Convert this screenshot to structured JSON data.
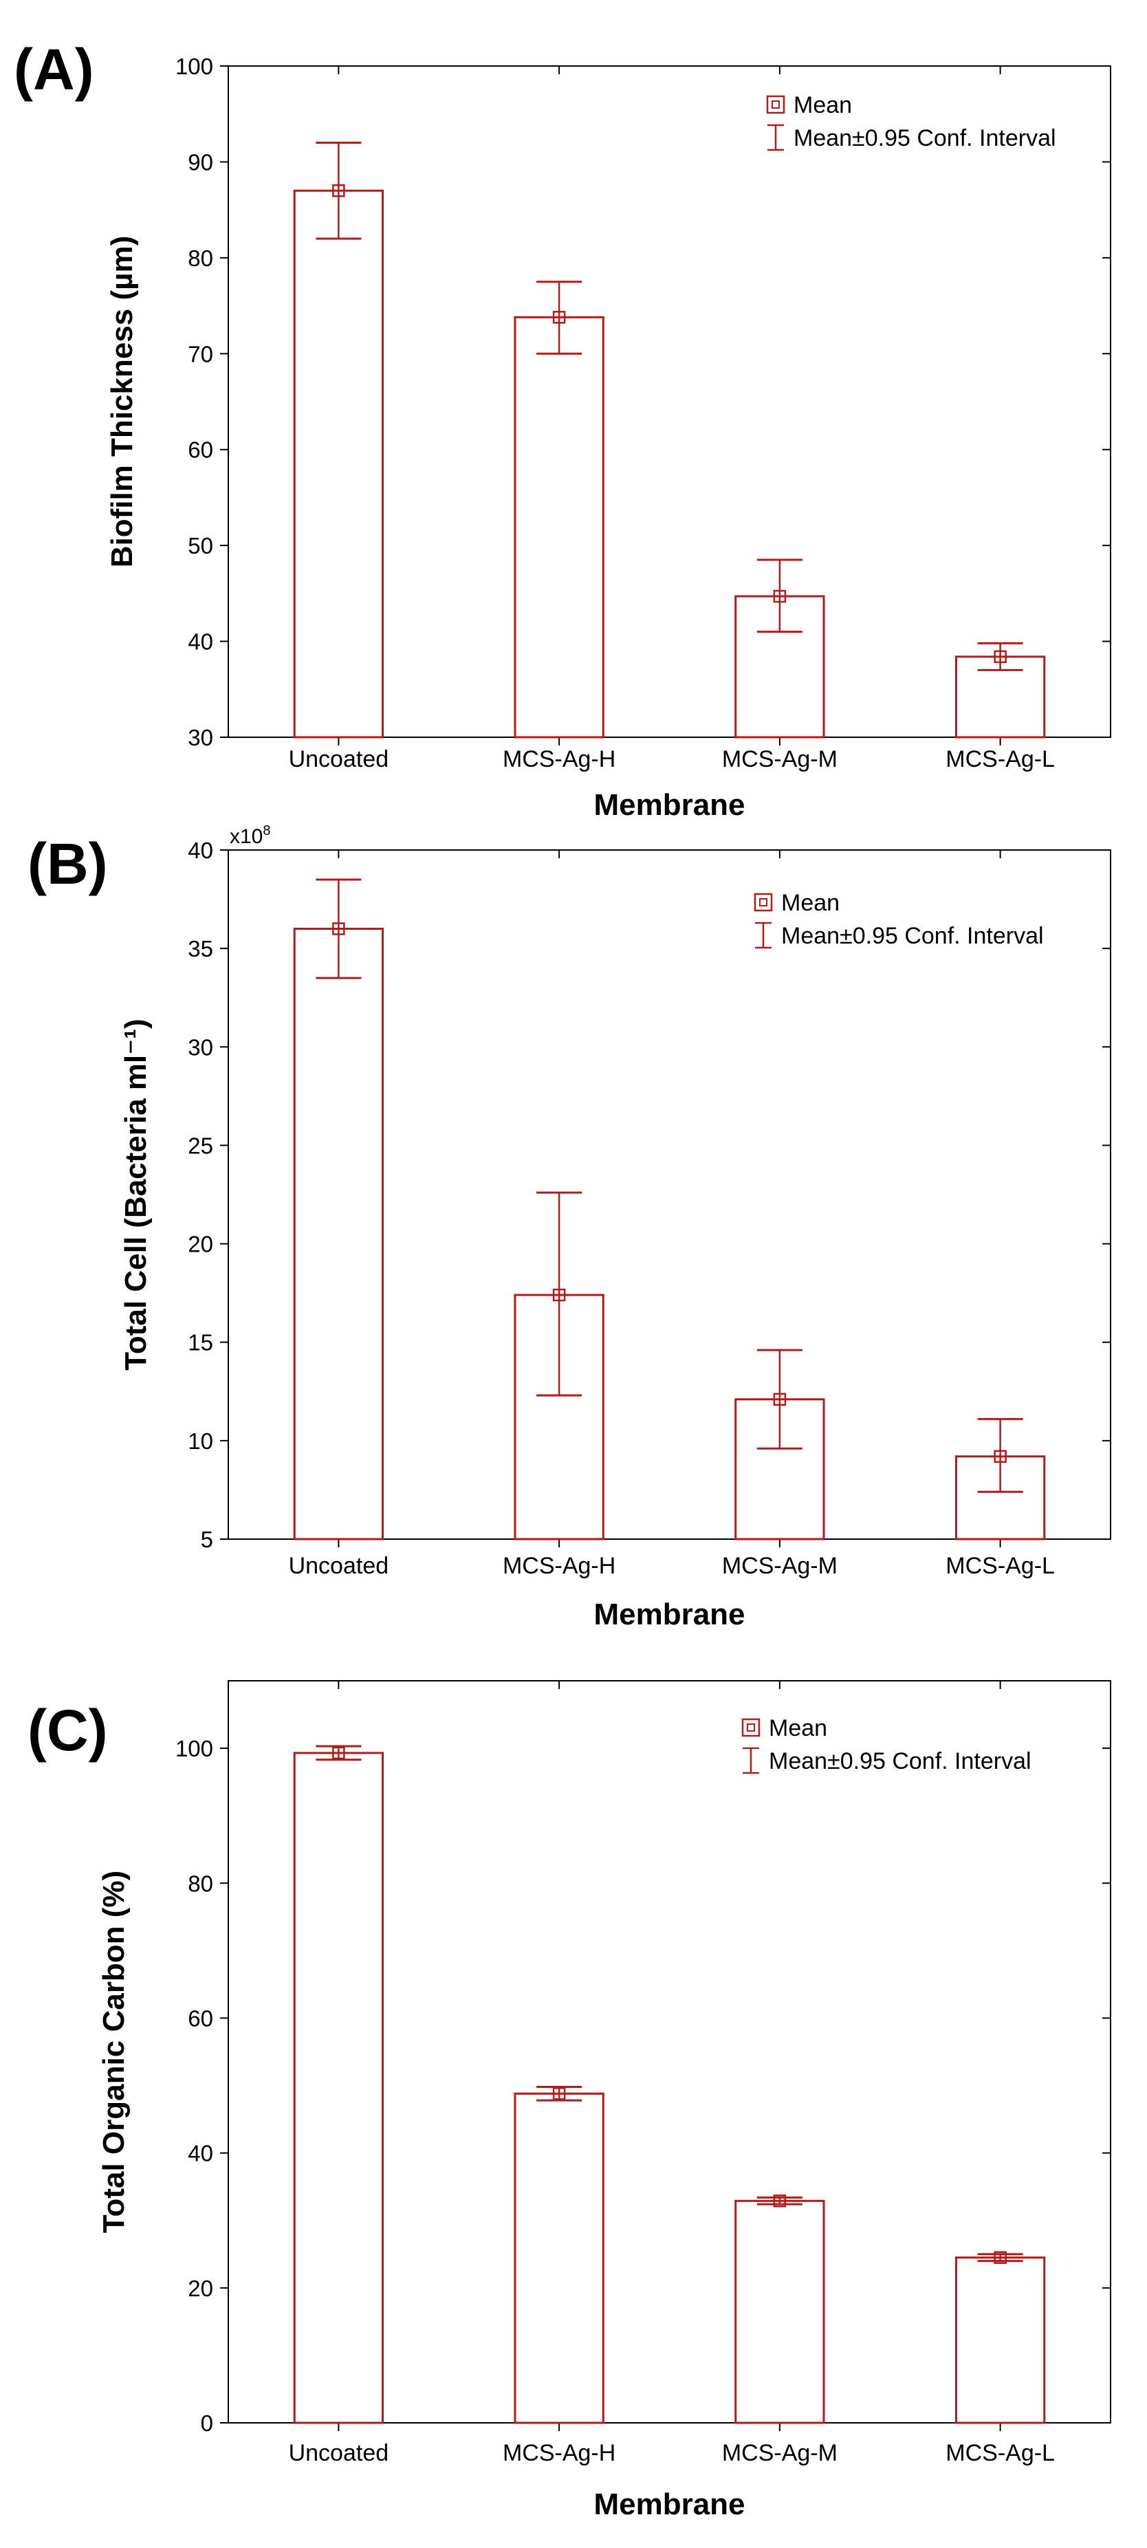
{
  "colors": {
    "bar": "#b01c1c",
    "axis": "#000000",
    "background": "#ffffff"
  },
  "chart_data": [
    {
      "panel_label": "(A)",
      "type": "bar",
      "categories": [
        "Uncoated",
        "MCS-Ag-H",
        "MCS-Ag-M",
        "MCS-Ag-L"
      ],
      "values": [
        87.0,
        73.8,
        44.7,
        38.4
      ],
      "ci_low": [
        82.0,
        70.0,
        41.0,
        37.0
      ],
      "ci_high": [
        92.0,
        77.5,
        48.5,
        39.8
      ],
      "xlabel": "Membrane",
      "ylabel": "Biofilm Thickness (µm)",
      "ylim": [
        30,
        100
      ],
      "yticks": [
        30,
        40,
        50,
        60,
        70,
        80,
        90,
        100
      ],
      "ytick_labels": [
        "30",
        "40",
        "50",
        "60",
        "70",
        "80",
        "90",
        "100"
      ],
      "legend": {
        "mean": "Mean",
        "ci": "Mean±0.95 Conf. Interval",
        "position": "top-right"
      }
    },
    {
      "panel_label": "(B)",
      "type": "bar",
      "categories": [
        "Uncoated",
        "MCS-Ag-H",
        "MCS-Ag-M",
        "MCS-Ag-L"
      ],
      "values": [
        36.0,
        17.4,
        12.1,
        9.2
      ],
      "ci_low": [
        33.5,
        12.3,
        9.6,
        7.4
      ],
      "ci_high": [
        38.5,
        22.6,
        14.6,
        11.1
      ],
      "xlabel": "Membrane",
      "ylabel": "Total Cell (Bacteria ml⁻¹)",
      "ylim": [
        5,
        40
      ],
      "yticks": [
        5,
        10,
        15,
        20,
        25,
        30,
        35,
        40
      ],
      "ytick_labels": [
        "5",
        "10",
        "15",
        "20",
        "25",
        "30",
        "35",
        "40"
      ],
      "multiplier": {
        "base": "x10",
        "exponent": "8"
      },
      "legend": {
        "mean": "Mean",
        "ci": "Mean±0.95 Conf. Interval",
        "position": "top-right"
      }
    },
    {
      "panel_label": "(C)",
      "type": "bar",
      "categories": [
        "Uncoated",
        "MCS-Ag-H",
        "MCS-Ag-M",
        "MCS-Ag-L"
      ],
      "values": [
        99.3,
        48.8,
        32.9,
        24.5
      ],
      "ci_low": [
        98.3,
        47.8,
        32.4,
        24.0
      ],
      "ci_high": [
        100.3,
        49.8,
        33.4,
        25.0
      ],
      "xlabel": "Membrane",
      "ylabel": "Total Organic Carbon (%)",
      "ylim": [
        0,
        110
      ],
      "yticks": [
        0,
        20,
        40,
        60,
        80,
        100
      ],
      "ytick_labels": [
        "0",
        "20",
        "40",
        "60",
        "80",
        "100"
      ],
      "legend": {
        "mean": "Mean",
        "ci": "Mean±0.95 Conf. Interval",
        "position": "top-right"
      }
    }
  ]
}
